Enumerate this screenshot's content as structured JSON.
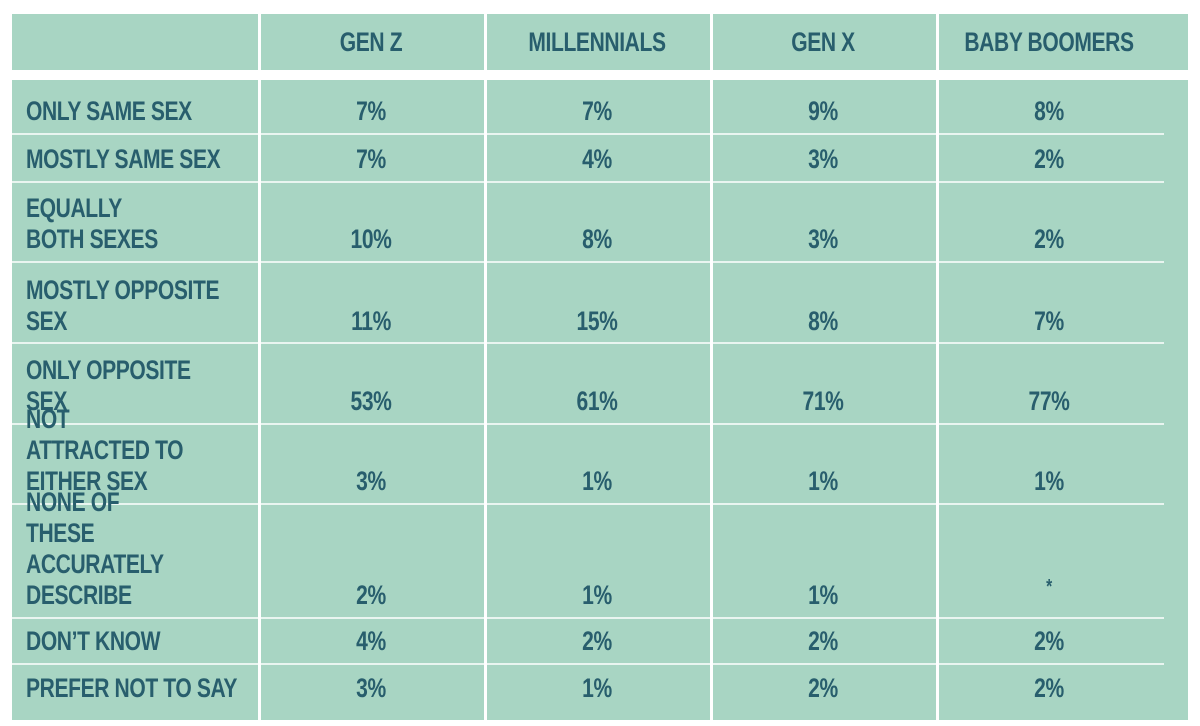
{
  "chart_data": {
    "type": "table",
    "columns": [
      "GEN Z",
      "MILLENNIALS",
      "GEN X",
      "BABY BOOMERS"
    ],
    "rows": [
      {
        "label": "ONLY SAME SEX",
        "values": [
          "7%",
          "7%",
          "9%",
          "8%"
        ]
      },
      {
        "label": "MOSTLY SAME SEX",
        "values": [
          "7%",
          "4%",
          "3%",
          "2%"
        ]
      },
      {
        "label": "EQUALLY BOTH SEXES",
        "values": [
          "10%",
          "8%",
          "3%",
          "2%"
        ]
      },
      {
        "label": "MOSTLY OPPOSITE SEX",
        "values": [
          "11%",
          "15%",
          "8%",
          "7%"
        ]
      },
      {
        "label": "ONLY OPPOSITE SEX",
        "values": [
          "53%",
          "61%",
          "71%",
          "77%"
        ]
      },
      {
        "label": "NOT ATTRACTED TO EITHER SEX",
        "values": [
          "3%",
          "1%",
          "1%",
          "1%"
        ]
      },
      {
        "label": "NONE OF THESE ACCURATELY DESCRIBE",
        "values": [
          "2%",
          "1%",
          "1%",
          "*"
        ]
      },
      {
        "label": "DON’T KNOW",
        "values": [
          "4%",
          "2%",
          "2%",
          "2%"
        ]
      },
      {
        "label": "PREFER NOT TO SAY",
        "values": [
          "3%",
          "1%",
          "2%",
          "2%"
        ]
      }
    ]
  },
  "colors": {
    "cell_background": "#a8d5c3",
    "text": "#285e6d",
    "grid": "#ffffff"
  }
}
